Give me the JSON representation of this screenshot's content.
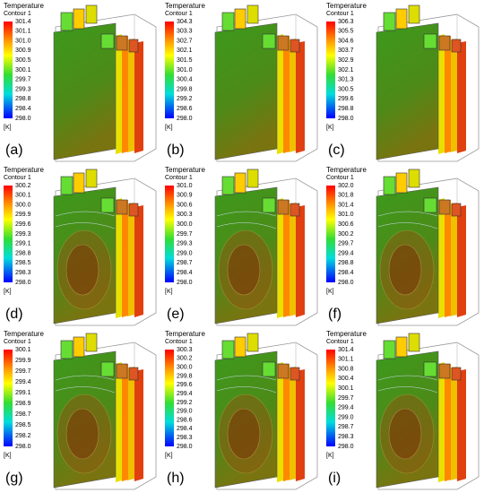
{
  "panels": [
    {
      "label": "(a)",
      "legend": {
        "title": "Temperature",
        "subtitle": "Contour 1",
        "unit": "[K]",
        "ticks": [
          "301.4",
          "301.1",
          "301.0",
          "300.9",
          "300.5",
          "300.1",
          "299.7",
          "299.3",
          "298.8",
          "298.4",
          "298.0"
        ]
      }
    },
    {
      "label": "(b)",
      "legend": {
        "title": "Temperature",
        "subtitle": "Contour 1",
        "unit": "[K]",
        "ticks": [
          "304.3",
          "303.3",
          "302.7",
          "302.1",
          "301.5",
          "301.0",
          "300.4",
          "299.8",
          "299.2",
          "298.6",
          "298.0"
        ]
      }
    },
    {
      "label": "(c)",
      "legend": {
        "title": "Temperature",
        "subtitle": "Contour 1",
        "unit": "[K]",
        "ticks": [
          "306.3",
          "305.5",
          "304.6",
          "303.7",
          "302.9",
          "302.1",
          "301.3",
          "300.5",
          "299.6",
          "298.8",
          "298.0"
        ]
      }
    },
    {
      "label": "(d)",
      "legend": {
        "title": "Temperature",
        "subtitle": "Contour 1",
        "unit": "[K]",
        "ticks": [
          "300.2",
          "300.1",
          "300.0",
          "299.9",
          "299.6",
          "299.3",
          "299.1",
          "298.8",
          "298.5",
          "298.3",
          "298.0"
        ]
      }
    },
    {
      "label": "(e)",
      "legend": {
        "title": "Temperature",
        "subtitle": "Contour 1",
        "unit": "[K]",
        "ticks": [
          "301.0",
          "300.9",
          "300.6",
          "300.3",
          "300.0",
          "299.7",
          "299.3",
          "299.0",
          "298.7",
          "298.4",
          "298.0"
        ]
      }
    },
    {
      "label": "(f)",
      "legend": {
        "title": "Temperature",
        "subtitle": "Contour 1",
        "unit": "[K]",
        "ticks": [
          "302.0",
          "301.8",
          "301.4",
          "301.0",
          "300.6",
          "300.2",
          "299.7",
          "299.4",
          "298.8",
          "298.4",
          "298.0"
        ]
      }
    },
    {
      "label": "(g)",
      "legend": {
        "title": "Temperature",
        "subtitle": "Contour 1",
        "unit": "[K]",
        "ticks": [
          "300.1",
          "299.9",
          "299.7",
          "299.4",
          "299.1",
          "298.9",
          "298.7",
          "298.5",
          "298.2",
          "298.0"
        ]
      }
    },
    {
      "label": "(h)",
      "legend": {
        "title": "Temperature",
        "subtitle": "Contour 1",
        "unit": "[K]",
        "ticks": [
          "300.3",
          "300.2",
          "300.0",
          "299.8",
          "299.6",
          "299.4",
          "299.2",
          "299.0",
          "298.6",
          "298.4",
          "298.3",
          "298.0"
        ]
      }
    },
    {
      "label": "(i)",
      "legend": {
        "title": "Temperature",
        "subtitle": "Contour 1",
        "unit": "[K]",
        "ticks": [
          "301.4",
          "301.1",
          "300.8",
          "300.4",
          "300.1",
          "299.7",
          "299.4",
          "299.0",
          "298.7",
          "298.3",
          "298.0"
        ]
      }
    }
  ]
}
